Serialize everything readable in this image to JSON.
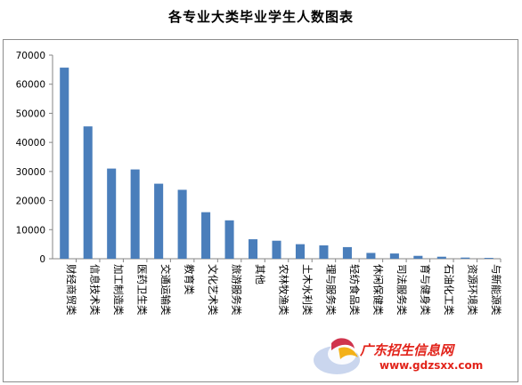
{
  "chart_data": {
    "type": "bar",
    "title": "各专业大类毕业学生人数图表",
    "xlabel": "",
    "ylabel": "",
    "ylim": [
      0,
      70000
    ],
    "yticks": [
      0,
      10000,
      20000,
      30000,
      40000,
      50000,
      60000,
      70000
    ],
    "grid": false,
    "legend": "none",
    "bar_color": "#4a7ebb",
    "categories": [
      "财经商贸类",
      "信息技术类",
      "加工制造类",
      "医药卫生类",
      "交通运输类",
      "教育类",
      "文化艺术类",
      "旅游服务类",
      "其他",
      "农林牧渔类",
      "土木水利类",
      "理与服务类",
      "轻纺食品类",
      "休闲保健类",
      "司法服务类",
      "育与健身类",
      "石油化工类",
      "资源环境类",
      "与新能源类"
    ],
    "values": [
      65700,
      45500,
      31000,
      30700,
      25800,
      23700,
      16000,
      13200,
      6700,
      6200,
      5000,
      4600,
      4000,
      2000,
      1800,
      1000,
      700,
      400,
      300
    ]
  },
  "watermark": {
    "name": "广东招生信息网",
    "url": "www.gdzsxx.com"
  }
}
